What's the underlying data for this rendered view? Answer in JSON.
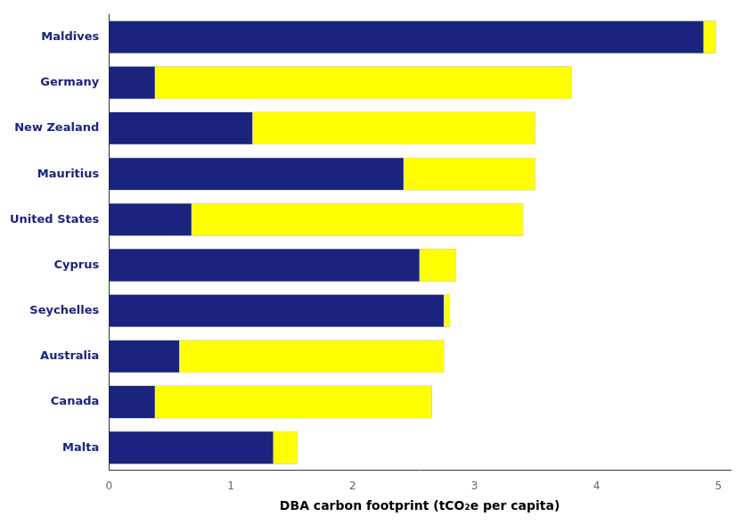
{
  "chart_data": {
    "type": "bar",
    "orientation": "horizontal",
    "stacked": true,
    "categories": [
      "Maldives",
      "Germany",
      "New Zealand",
      "Mauritius",
      "United States",
      "Cyprus",
      "Seychelles",
      "Australia",
      "Canada",
      "Malta"
    ],
    "series": [
      {
        "color": "#1a237e",
        "values": [
          4.88,
          0.38,
          1.18,
          2.42,
          0.68,
          2.55,
          2.75,
          0.58,
          0.38,
          1.35
        ]
      },
      {
        "color": "#ffff00",
        "values": [
          0.1,
          3.42,
          2.32,
          1.08,
          2.72,
          0.3,
          0.05,
          2.17,
          2.27,
          0.2
        ]
      }
    ],
    "xlabel": "DBA carbon footprint (tCO₂e per capita)",
    "xlim": [
      0,
      5.1
    ],
    "xticks": [
      0,
      1,
      2,
      3,
      4,
      5
    ],
    "grid": false
  }
}
